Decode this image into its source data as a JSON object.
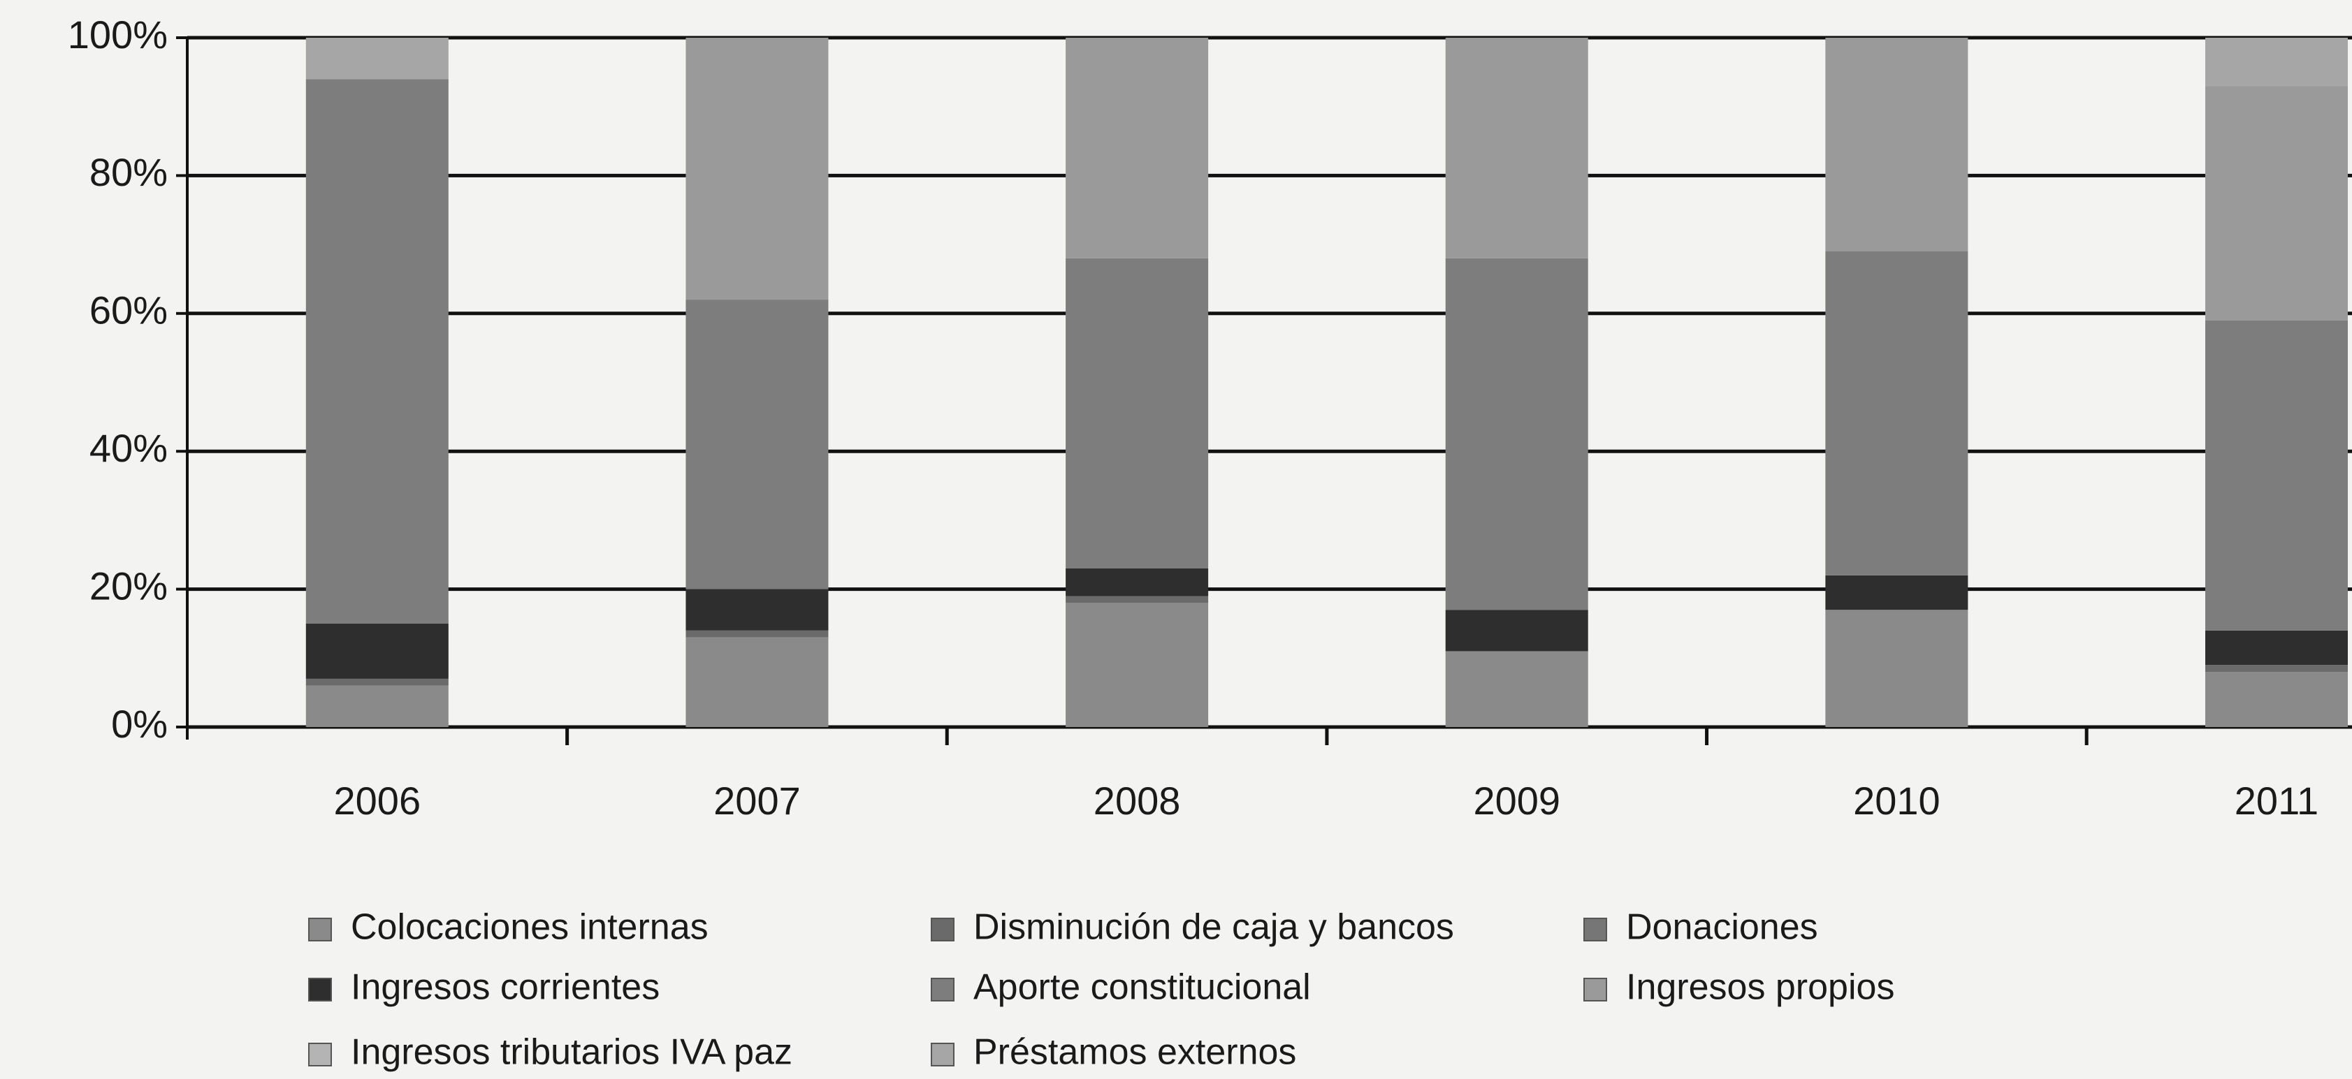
{
  "chart_data": {
    "type": "stacked_bar_100",
    "categories": [
      "2006",
      "2007",
      "2008",
      "2009",
      "2010",
      "2011"
    ],
    "series": [
      {
        "name": "Colocaciones internas",
        "color": "#8a8a8a",
        "values": [
          6,
          13,
          18,
          11,
          17,
          8
        ]
      },
      {
        "name": "Disminución de caja y bancos",
        "color": "#6a6a6a",
        "values": [
          1,
          1,
          1,
          0,
          0,
          1
        ]
      },
      {
        "name": "Donaciones",
        "color": "#767676",
        "values": [
          0,
          0,
          0,
          0,
          0,
          0
        ]
      },
      {
        "name": "Ingresos corrientes",
        "color": "#2e2e2e",
        "values": [
          8,
          6,
          4,
          6,
          5,
          5
        ]
      },
      {
        "name": "Aporte constitucional",
        "color": "#7d7d7d",
        "values": [
          79,
          42,
          45,
          51,
          47,
          45
        ]
      },
      {
        "name": "Ingresos propios",
        "color": "#9a9a9a",
        "values": [
          0,
          38,
          32,
          32,
          31,
          34
        ]
      },
      {
        "name": "Ingresos tributarios IVA paz",
        "color": "#b4b4b4",
        "values": [
          0,
          0,
          0,
          0,
          0,
          0
        ]
      },
      {
        "name": "Préstamos externos",
        "color": "#a6a6a6",
        "values": [
          6,
          0,
          0,
          0,
          0,
          7
        ]
      }
    ],
    "ylim": [
      0,
      100
    ],
    "yticks": [
      {
        "value": 0,
        "label": "0%"
      },
      {
        "value": 20,
        "label": "20%"
      },
      {
        "value": 40,
        "label": "40%"
      },
      {
        "value": 60,
        "label": "60%"
      },
      {
        "value": 80,
        "label": "80%"
      },
      {
        "value": 100,
        "label": "100%"
      }
    ],
    "grid": true
  }
}
